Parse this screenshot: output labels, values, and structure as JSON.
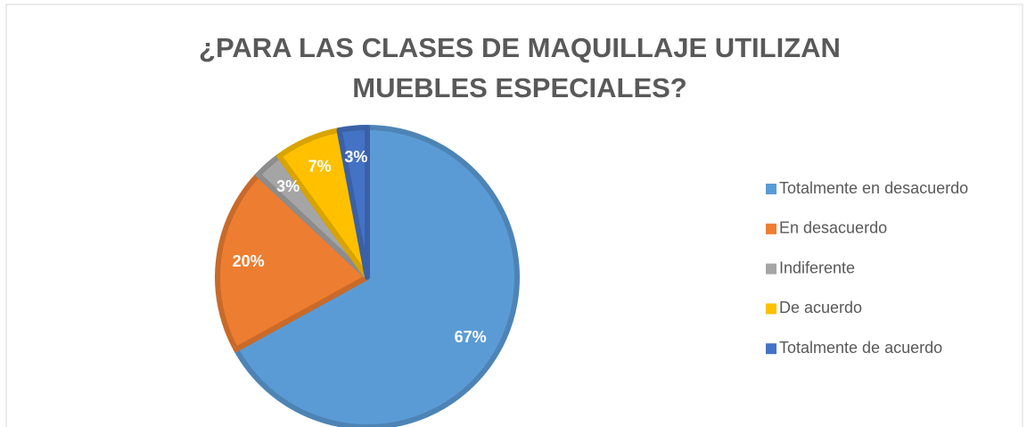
{
  "chart_data": {
    "type": "pie",
    "title": [
      "¿PARA LAS CLASES DE MAQUILLAJE UTILIZAN",
      "MUEBLES ESPECIALES?"
    ],
    "categories": [
      "Totalmente en desacuerdo",
      "En desacuerdo",
      "Indiferente",
      "De acuerdo",
      "Totalmente de acuerdo"
    ],
    "values": [
      67,
      20,
      3,
      7,
      3
    ],
    "value_labels": [
      "67%",
      "20%",
      "3%",
      "7%",
      "3%"
    ],
    "colors": [
      "#5B9BD5",
      "#ED7D31",
      "#A5A5A5",
      "#FFC000",
      "#4472C4"
    ],
    "legend": "right"
  }
}
